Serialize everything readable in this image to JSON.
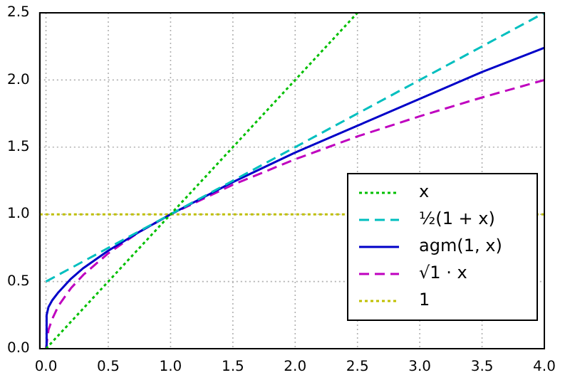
{
  "chart_data": {
    "type": "line",
    "xlim": [
      -0.05,
      4
    ],
    "ylim": [
      0,
      2.5
    ],
    "xticks": [
      {
        "value": 0,
        "label": "0.0"
      },
      0.5,
      {
        "value": 1,
        "label": "1.0"
      },
      1.5,
      {
        "value": 2,
        "label": "2.0"
      },
      2.5,
      {
        "value": 3,
        "label": "3.0"
      },
      3.5,
      {
        "value": 4,
        "label": "4.0"
      }
    ],
    "yticks": [
      {
        "value": 0,
        "label": "0.0"
      },
      0.5,
      {
        "value": 1,
        "label": "1.0"
      },
      1.5,
      {
        "value": 2,
        "label": "2.0"
      },
      2.5
    ],
    "grid": true,
    "legend": "bottom right",
    "marker": "none",
    "series": [
      {
        "name": "x",
        "color": "#00bf00",
        "line_style": "dotted",
        "x": [
          0,
          2.5
        ],
        "values": [
          0,
          2.5
        ]
      },
      {
        "name": "½(1 + x)",
        "color": "#00bfbf",
        "line_style": "dashed",
        "x": [
          0,
          4
        ],
        "values": [
          0.5,
          2.5
        ]
      },
      {
        "name": "agm(1, x)",
        "color": "#0000c8",
        "line_style": "solid",
        "x": [
          0,
          0.005,
          0.02,
          0.05,
          0.1,
          0.2,
          0.3,
          0.5,
          0.75,
          1,
          1.5,
          2,
          2.5,
          3,
          3.5,
          4
        ],
        "values": [
          0,
          0.25,
          0.31,
          0.36,
          0.42,
          0.52,
          0.6,
          0.73,
          0.87,
          1,
          1.24,
          1.46,
          1.66,
          1.86,
          2.06,
          2.24
        ]
      },
      {
        "name": "√1 · x",
        "color": "#bf00bf",
        "line_style": "dashed",
        "x": [
          0,
          0.02,
          0.05,
          0.1,
          0.2,
          0.3,
          0.5,
          0.75,
          1,
          1.5,
          2,
          2.5,
          3,
          3.5,
          4
        ],
        "values": [
          0,
          0.14,
          0.22,
          0.32,
          0.45,
          0.55,
          0.71,
          0.87,
          1,
          1.22,
          1.41,
          1.58,
          1.73,
          1.87,
          2
        ]
      },
      {
        "name": "1",
        "color": "#bfbf00",
        "line_style": "dotted",
        "x": [
          -0.05,
          4
        ],
        "values": [
          1,
          1
        ]
      }
    ]
  }
}
